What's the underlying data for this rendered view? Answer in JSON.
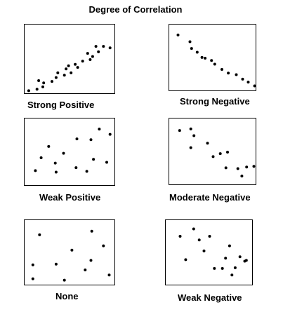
{
  "title": "Degree of Correlation",
  "chart_data": [
    {
      "type": "scatter",
      "label": "Strong Positive",
      "xlim": [
        0,
        110
      ],
      "ylim": [
        0,
        90
      ],
      "points": [
        [
          5,
          5
        ],
        [
          15,
          7
        ],
        [
          17,
          18
        ],
        [
          22,
          10
        ],
        [
          23,
          15
        ],
        [
          33,
          17
        ],
        [
          38,
          22
        ],
        [
          40,
          28
        ],
        [
          48,
          25
        ],
        [
          50,
          33
        ],
        [
          53,
          37
        ],
        [
          56,
          28
        ],
        [
          61,
          39
        ],
        [
          64,
          35
        ],
        [
          70,
          43
        ],
        [
          76,
          53
        ],
        [
          79,
          45
        ],
        [
          82,
          49
        ],
        [
          86,
          62
        ],
        [
          89,
          55
        ],
        [
          95,
          62
        ],
        [
          103,
          60
        ]
      ]
    },
    {
      "type": "scatter",
      "label": "Strong Negative",
      "xlim": [
        0,
        110
      ],
      "ylim": [
        0,
        90
      ],
      "points": [
        [
          11,
          76
        ],
        [
          26,
          67
        ],
        [
          28,
          58
        ],
        [
          35,
          53
        ],
        [
          41,
          46
        ],
        [
          45,
          45
        ],
        [
          53,
          42
        ],
        [
          57,
          37
        ],
        [
          66,
          30
        ],
        [
          74,
          25
        ],
        [
          84,
          23
        ],
        [
          92,
          17
        ],
        [
          99,
          13
        ],
        [
          107,
          8
        ]
      ]
    },
    {
      "type": "scatter",
      "label": "Weak Positive",
      "xlim": [
        0,
        110
      ],
      "ylim": [
        0,
        90
      ],
      "points": [
        [
          13,
          21
        ],
        [
          20,
          38
        ],
        [
          29,
          53
        ],
        [
          37,
          31
        ],
        [
          38,
          19
        ],
        [
          47,
          44
        ],
        [
          62,
          25
        ],
        [
          63,
          63
        ],
        [
          75,
          20
        ],
        [
          80,
          62
        ],
        [
          83,
          36
        ],
        [
          90,
          76
        ],
        [
          99,
          32
        ],
        [
          103,
          69
        ]
      ]
    },
    {
      "type": "scatter",
      "label": "Moderate Negative",
      "xlim": [
        0,
        110
      ],
      "ylim": [
        0,
        90
      ],
      "points": [
        [
          13,
          74
        ],
        [
          27,
          76
        ],
        [
          31,
          67
        ],
        [
          27,
          51
        ],
        [
          48,
          57
        ],
        [
          55,
          39
        ],
        [
          64,
          43
        ],
        [
          71,
          24
        ],
        [
          73,
          45
        ],
        [
          86,
          23
        ],
        [
          91,
          13
        ],
        [
          97,
          25
        ],
        [
          106,
          26
        ]
      ]
    },
    {
      "type": "scatter",
      "label": "None",
      "xlim": [
        0,
        110
      ],
      "ylim": [
        0,
        90
      ],
      "points": [
        [
          18,
          70
        ],
        [
          10,
          29
        ],
        [
          10,
          10
        ],
        [
          38,
          30
        ],
        [
          48,
          8
        ],
        [
          57,
          49
        ],
        [
          73,
          22
        ],
        [
          80,
          35
        ],
        [
          81,
          75
        ],
        [
          95,
          55
        ],
        [
          102,
          15
        ]
      ]
    },
    {
      "type": "scatter",
      "label": "Weak Negative",
      "xlim": [
        0,
        110
      ],
      "ylim": [
        0,
        90
      ],
      "points": [
        [
          18,
          68
        ],
        [
          35,
          78
        ],
        [
          42,
          63
        ],
        [
          48,
          48
        ],
        [
          55,
          68
        ],
        [
          25,
          36
        ],
        [
          61,
          24
        ],
        [
          71,
          24
        ],
        [
          75,
          38
        ],
        [
          80,
          55
        ],
        [
          87,
          25
        ],
        [
          93,
          40
        ],
        [
          99,
          34
        ],
        [
          101,
          35
        ],
        [
          83,
          15
        ]
      ]
    }
  ]
}
